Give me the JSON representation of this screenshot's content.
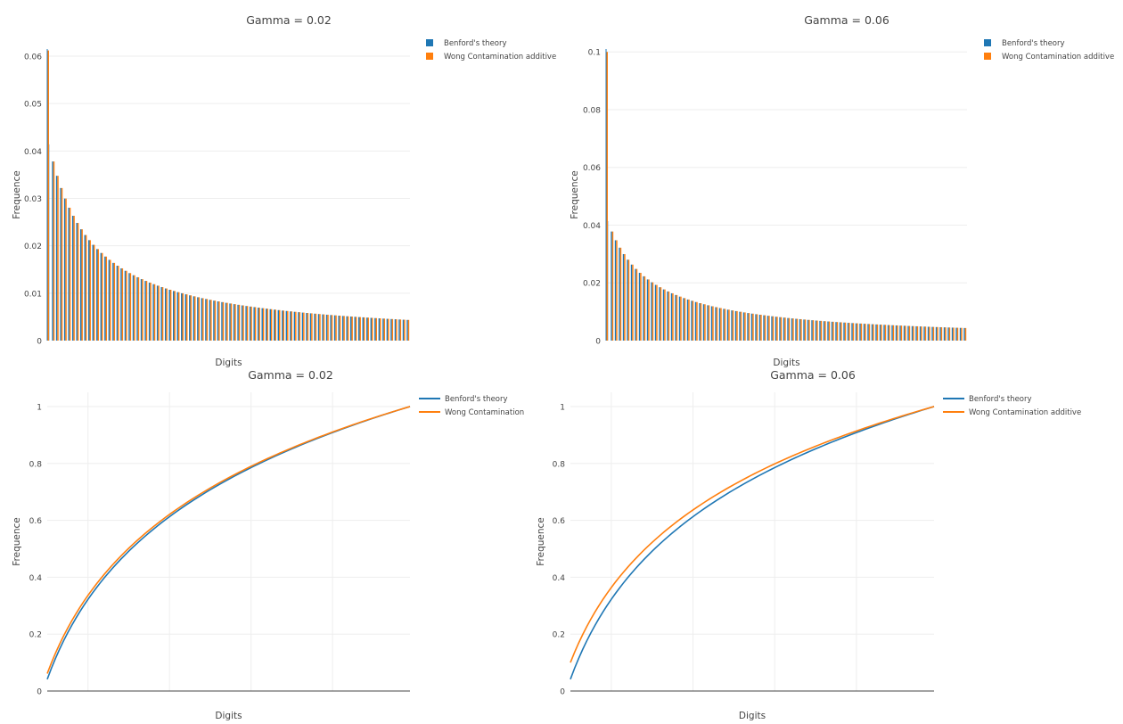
{
  "colors": {
    "benford": "#1f77b4",
    "wong": "#ff7f0e",
    "grid": "#eeeeee",
    "axis": "#444444",
    "tick_text": "#444444"
  },
  "chart_data": [
    {
      "type": "bar",
      "title": "Gamma =  0.02",
      "xlabel": "Digits",
      "ylabel": "Frequence",
      "ylim": [
        0,
        0.0615
      ],
      "yticks": [
        0,
        0.01,
        0.02,
        0.03,
        0.04,
        0.05,
        0.06
      ],
      "ytick_labels": [
        "0",
        "0.01",
        "0.02",
        "0.03",
        "0.04",
        "0.05",
        "0.06"
      ],
      "x": {
        "start": 10,
        "end": 99
      },
      "grid": true,
      "legend": "top-right",
      "legend_labels": [
        "Benford's theory",
        "Wong Contamination additive"
      ],
      "series": [
        {
          "name": "Benford's theory",
          "color_key": "benford",
          "formula": "log10(1+1/d)"
        },
        {
          "name": "Wong Contamination additive",
          "color_key": "wong",
          "first_value": 0.0612,
          "first_bar_width": "thin",
          "other_values": "equal to Benford's theory"
        }
      ]
    },
    {
      "type": "bar",
      "title": "Gamma =  0.06",
      "xlabel": "Digits",
      "ylabel": "Frequence",
      "ylim": [
        0,
        0.101
      ],
      "yticks": [
        0,
        0.02,
        0.04,
        0.06,
        0.08,
        0.1
      ],
      "ytick_labels": [
        "0",
        "0.02",
        "0.04",
        "0.06",
        "0.08",
        "0.1"
      ],
      "x": {
        "start": 10,
        "end": 99
      },
      "grid": true,
      "legend": "top-right",
      "legend_labels": [
        "Benford's theory",
        "Wong Contamination additive"
      ],
      "series": [
        {
          "name": "Benford's theory",
          "color_key": "benford",
          "formula": "log10(1+1/d)"
        },
        {
          "name": "Wong Contamination additive",
          "color_key": "wong",
          "first_value": 0.1,
          "first_bar_width": "thin",
          "other_values": "equal to Benford's theory"
        }
      ]
    },
    {
      "type": "line",
      "title": "Gamma =  0.02",
      "xlabel": "Digits",
      "ylabel": "Frequence",
      "ylim": [
        0,
        1.05
      ],
      "yticks": [
        0,
        0.2,
        0.4,
        0.6,
        0.8,
        1
      ],
      "ytick_labels": [
        "0",
        "0.2",
        "0.4",
        "0.6",
        "0.8",
        "1"
      ],
      "x": {
        "start": 10,
        "end": 99
      },
      "x_gridlines": [
        20,
        40,
        60,
        80
      ],
      "grid": true,
      "legend": "top-right",
      "legend_labels": [
        "Benford's theory",
        "Wong Contamination"
      ],
      "series": [
        {
          "name": "Benford's theory",
          "color_key": "benford",
          "formula": "cumulative log10(1+1/d)",
          "first_value": 0.0414,
          "last_value": 1
        },
        {
          "name": "Wong Contamination",
          "color_key": "wong",
          "formula": "cumulative, offset by first digit",
          "first_value": 0.0612,
          "last_value": 1
        }
      ]
    },
    {
      "type": "line",
      "title": "Gamma =  0.06",
      "xlabel": "Digits",
      "ylabel": "Frequence",
      "ylim": [
        0,
        1.05
      ],
      "yticks": [
        0,
        0.2,
        0.4,
        0.6,
        0.8,
        1
      ],
      "ytick_labels": [
        "0",
        "0.2",
        "0.4",
        "0.6",
        "0.8",
        "1"
      ],
      "x": {
        "start": 10,
        "end": 99
      },
      "x_gridlines": [
        20,
        40,
        60,
        80
      ],
      "grid": true,
      "legend": "top-right",
      "legend_labels": [
        "Benford's theory",
        "Wong Contamination additive"
      ],
      "series": [
        {
          "name": "Benford's theory",
          "color_key": "benford",
          "formula": "cumulative log10(1+1/d)",
          "first_value": 0.0414,
          "last_value": 1
        },
        {
          "name": "Wong Contamination additive",
          "color_key": "wong",
          "formula": "cumulative, offset by first digit",
          "first_value": 0.1,
          "last_value": 1
        }
      ]
    }
  ]
}
